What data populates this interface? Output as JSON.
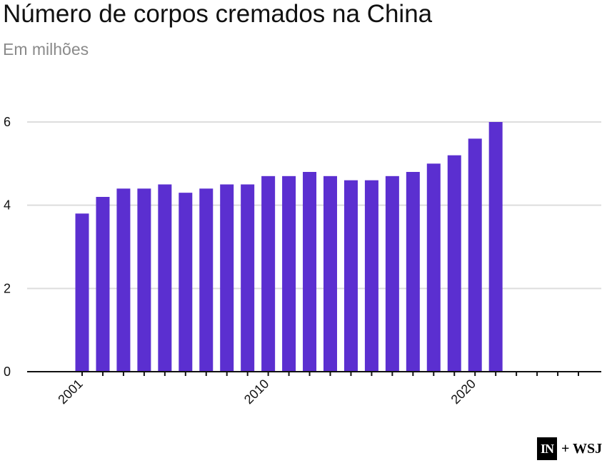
{
  "title": "Número de corpos cremados na China",
  "subtitle": "Em milhões",
  "logo": {
    "mark": "IN",
    "partner": "+ WSJ"
  },
  "chart_data": {
    "type": "bar",
    "x": [
      2001,
      2002,
      2003,
      2004,
      2005,
      2006,
      2007,
      2008,
      2009,
      2010,
      2011,
      2012,
      2013,
      2014,
      2015,
      2016,
      2017,
      2018,
      2019,
      2020,
      2021
    ],
    "values": [
      3.8,
      4.2,
      4.4,
      4.4,
      4.5,
      4.3,
      4.4,
      4.5,
      4.5,
      4.7,
      4.7,
      4.8,
      4.7,
      4.6,
      4.6,
      4.7,
      4.8,
      5.0,
      5.2,
      5.6,
      6.0
    ],
    "xlim": [
      2001,
      2025
    ],
    "ylim": [
      0,
      6
    ],
    "yticks": [
      0,
      2,
      4,
      6
    ],
    "xtick_labels": [
      "2001",
      "2010",
      "2020"
    ],
    "bar_color": "#5b2fd0",
    "grid": true
  }
}
